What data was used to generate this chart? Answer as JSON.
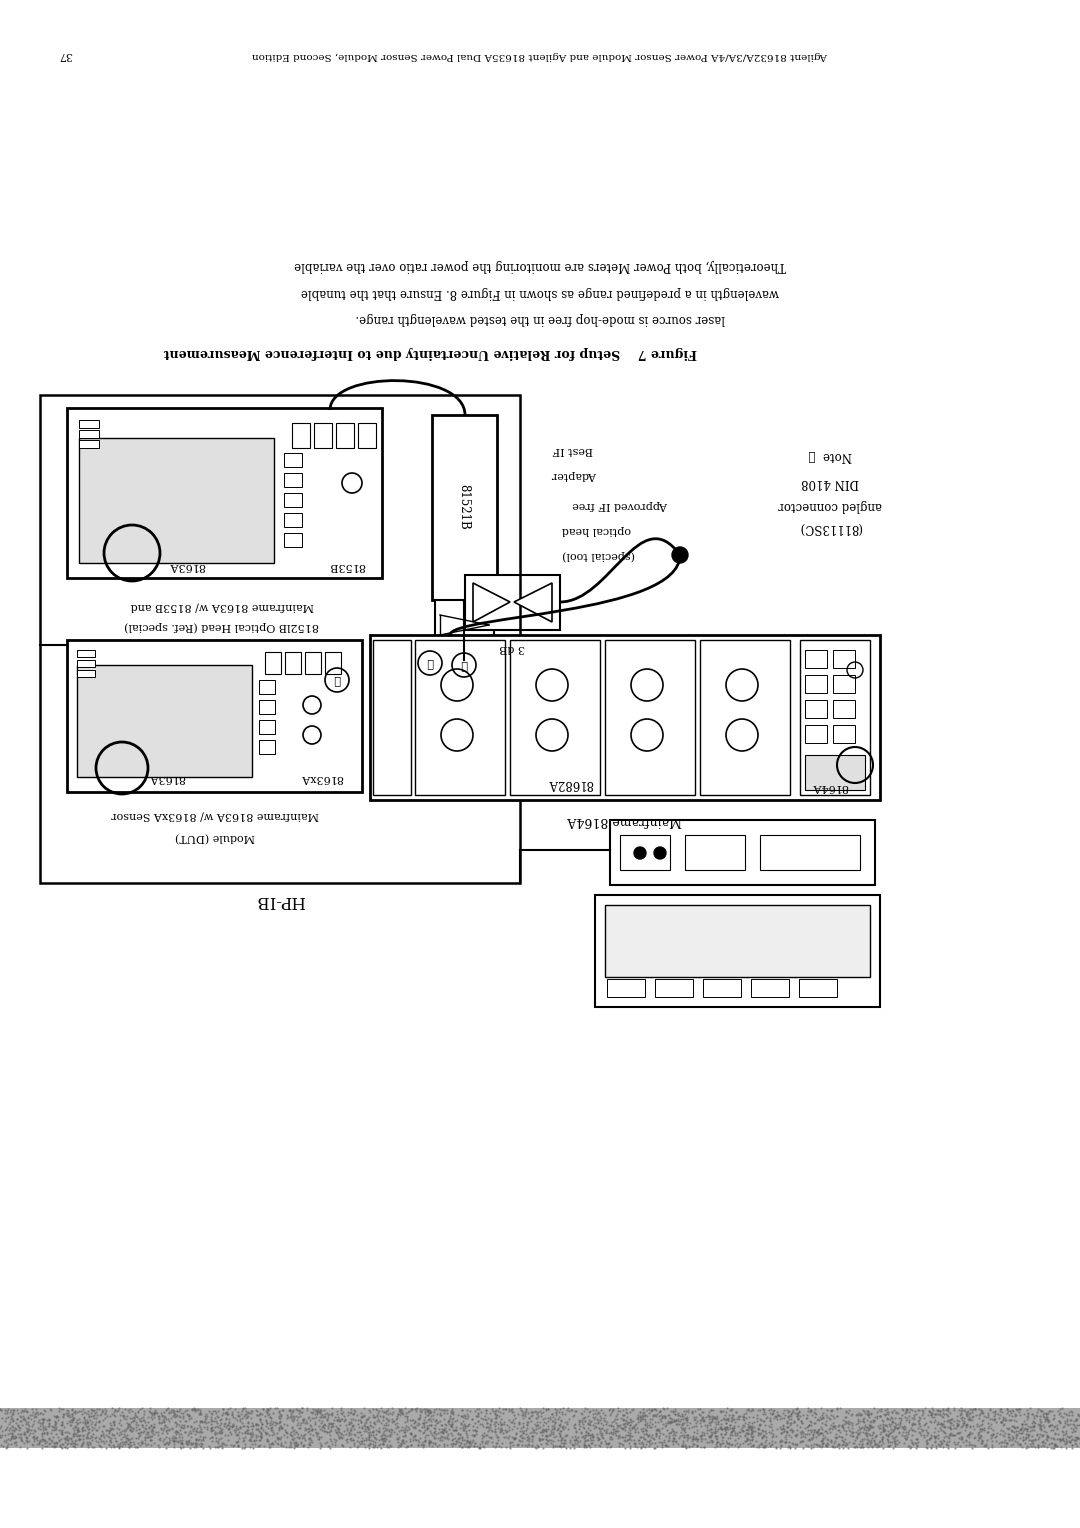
{
  "page_width": 10.8,
  "page_height": 15.28,
  "bg_color": "#ffffff",
  "header_text": "Agilent 81632A/3A/4A Power Sensor Module and Agilent 81635A Dual Power Sensor Module, Second Edition",
  "page_number": "37",
  "figure_caption": "Figure 7    Setup for Relative Uncertainty due to Interference Measurement",
  "body_text": [
    "Theoretically, both Power Meters are monitoring the power ratio over the variable",
    "wavelength in a predefined range as shown in Figure 8. Ensure that the tunable",
    "laser source is mode-hop free in the tested wavelength range."
  ],
  "footer_band_color": "#999999",
  "text_color": "#000000"
}
